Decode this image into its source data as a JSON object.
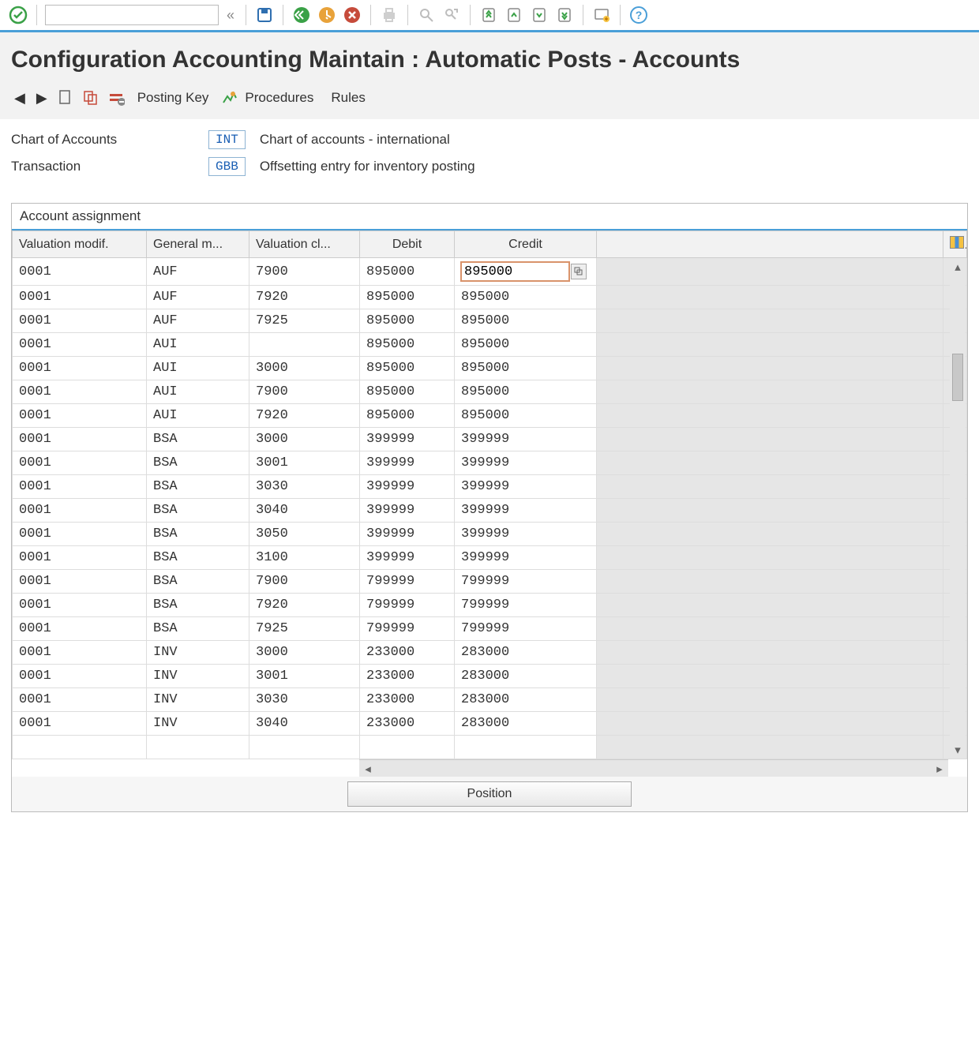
{
  "toolbar": {
    "command_value": "",
    "icons": [
      {
        "name": "enter-icon",
        "color": "#3aa147"
      },
      {
        "name": "save-icon",
        "color": "#2f6fb0"
      },
      {
        "name": "back-icon",
        "color": "#3aa147"
      },
      {
        "name": "exit-icon",
        "color": "#e8a23a"
      },
      {
        "name": "cancel-icon",
        "color": "#c64b3b"
      },
      {
        "name": "print-icon",
        "color": "#bdbdbd"
      },
      {
        "name": "find-icon",
        "color": "#bdbdbd"
      },
      {
        "name": "find-next-icon",
        "color": "#bdbdbd"
      },
      {
        "name": "first-page-icon",
        "color": "#3aa147"
      },
      {
        "name": "prev-page-icon",
        "color": "#3aa147"
      },
      {
        "name": "next-page-icon",
        "color": "#3aa147"
      },
      {
        "name": "last-page-icon",
        "color": "#3aa147"
      },
      {
        "name": "new-session-icon",
        "color": "#e8a23a"
      },
      {
        "name": "help-icon",
        "color": "#4a9fd8"
      }
    ]
  },
  "title": "Configuration Accounting Maintain : Automatic Posts - Accounts",
  "app_toolbar": {
    "posting_key_label": "Posting Key",
    "procedures_label": "Procedures",
    "rules_label": "Rules"
  },
  "header": {
    "chart_label": "Chart of Accounts",
    "chart_code": "INT",
    "chart_desc": "Chart of accounts - international",
    "txn_label": "Transaction",
    "txn_code": "GBB",
    "txn_desc": "Offsetting entry for inventory posting"
  },
  "panel": {
    "title": "Account assignment",
    "columns": {
      "valuation_modif": "Valuation modif.",
      "general_mod": "General m...",
      "valuation_class": "Valuation cl...",
      "debit": "Debit",
      "credit": "Credit"
    },
    "position_btn": "Position",
    "selected": {
      "row": 0,
      "col": "credit"
    },
    "rows": [
      {
        "vm": "0001",
        "gm": "AUF",
        "vc": "7900",
        "debit": "895000",
        "credit": "895000"
      },
      {
        "vm": "0001",
        "gm": "AUF",
        "vc": "7920",
        "debit": "895000",
        "credit": "895000"
      },
      {
        "vm": "0001",
        "gm": "AUF",
        "vc": "7925",
        "debit": "895000",
        "credit": "895000"
      },
      {
        "vm": "0001",
        "gm": "AUI",
        "vc": "",
        "debit": "895000",
        "credit": "895000"
      },
      {
        "vm": "0001",
        "gm": "AUI",
        "vc": "3000",
        "debit": "895000",
        "credit": "895000"
      },
      {
        "vm": "0001",
        "gm": "AUI",
        "vc": "7900",
        "debit": "895000",
        "credit": "895000"
      },
      {
        "vm": "0001",
        "gm": "AUI",
        "vc": "7920",
        "debit": "895000",
        "credit": "895000"
      },
      {
        "vm": "0001",
        "gm": "BSA",
        "vc": "3000",
        "debit": "399999",
        "credit": "399999"
      },
      {
        "vm": "0001",
        "gm": "BSA",
        "vc": "3001",
        "debit": "399999",
        "credit": "399999"
      },
      {
        "vm": "0001",
        "gm": "BSA",
        "vc": "3030",
        "debit": "399999",
        "credit": "399999"
      },
      {
        "vm": "0001",
        "gm": "BSA",
        "vc": "3040",
        "debit": "399999",
        "credit": "399999"
      },
      {
        "vm": "0001",
        "gm": "BSA",
        "vc": "3050",
        "debit": "399999",
        "credit": "399999"
      },
      {
        "vm": "0001",
        "gm": "BSA",
        "vc": "3100",
        "debit": "399999",
        "credit": "399999"
      },
      {
        "vm": "0001",
        "gm": "BSA",
        "vc": "7900",
        "debit": "799999",
        "credit": "799999"
      },
      {
        "vm": "0001",
        "gm": "BSA",
        "vc": "7920",
        "debit": "799999",
        "credit": "799999"
      },
      {
        "vm": "0001",
        "gm": "BSA",
        "vc": "7925",
        "debit": "799999",
        "credit": "799999"
      },
      {
        "vm": "0001",
        "gm": "INV",
        "vc": "3000",
        "debit": "233000",
        "credit": "283000"
      },
      {
        "vm": "0001",
        "gm": "INV",
        "vc": "3001",
        "debit": "233000",
        "credit": "283000"
      },
      {
        "vm": "0001",
        "gm": "INV",
        "vc": "3030",
        "debit": "233000",
        "credit": "283000"
      },
      {
        "vm": "0001",
        "gm": "INV",
        "vc": "3040",
        "debit": "233000",
        "credit": "283000"
      }
    ]
  },
  "colors": {
    "accent": "#4a9fd8",
    "selection": "#d9936b",
    "code_border": "#8db3d3",
    "code_text": "#1a5fb4"
  }
}
